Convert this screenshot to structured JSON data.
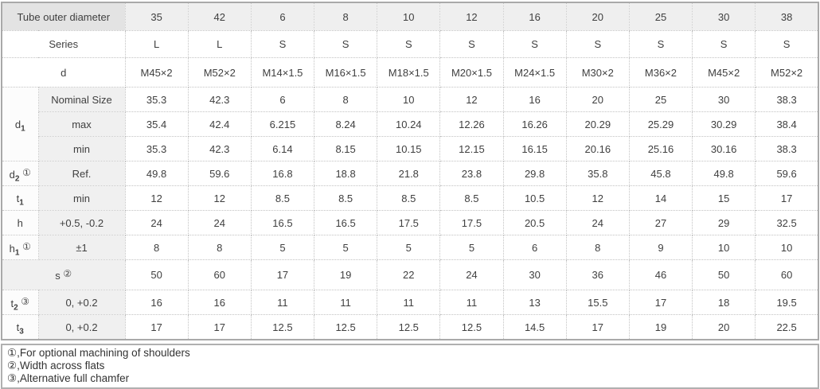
{
  "colors": {
    "accent_blue": "#1a6eb8",
    "header_label_bg": "#e3e3e3",
    "header_value_bg": "#efefef",
    "sublabel_bg": "#f0f0f0"
  },
  "table": {
    "header": {
      "label": "Tube outer diameter",
      "values": [
        "35",
        "42",
        "6",
        "8",
        "10",
        "12",
        "16",
        "20",
        "25",
        "30",
        "38"
      ]
    },
    "rows": [
      {
        "id": "series",
        "span": 2,
        "label": {
          "text": "Series"
        },
        "values": [
          "L",
          "L",
          "S",
          "S",
          "S",
          "S",
          "S",
          "S",
          "S",
          "S",
          "S"
        ]
      },
      {
        "id": "d",
        "span": 2,
        "label": {
          "text": "d"
        },
        "values": [
          "M45×2",
          "M52×2",
          "M14×1.5",
          "M16×1.5",
          "M18×1.5",
          "M20×1.5",
          "M24×1.5",
          "M30×2",
          "M36×2",
          "M45×2",
          "M52×2"
        ]
      },
      {
        "id": "d1-nominal",
        "group": {
          "text": "d",
          "sub": "1",
          "rows": 3
        },
        "sublabel": "Nominal Size",
        "values": [
          "35.3",
          "42.3",
          "6",
          "8",
          "10",
          "12",
          "16",
          "20",
          "25",
          "30",
          "38.3"
        ]
      },
      {
        "id": "d1-max",
        "sublabel": "max",
        "values": [
          "35.4",
          "42.4",
          "6.215",
          "8.24",
          "10.24",
          "12.26",
          "16.26",
          "20.29",
          "25.29",
          "30.29",
          "38.4"
        ]
      },
      {
        "id": "d1-min",
        "sublabel": "min",
        "values": [
          "35.3",
          "42.3",
          "6.14",
          "8.15",
          "10.15",
          "12.15",
          "16.15",
          "20.16",
          "25.16",
          "30.16",
          "38.3"
        ]
      },
      {
        "id": "d2",
        "label": {
          "text": "d",
          "sub": "2",
          "note": "①"
        },
        "sublabel": "Ref.",
        "values": [
          "49.8",
          "59.6",
          "16.8",
          "18.8",
          "21.8",
          "23.8",
          "29.8",
          "35.8",
          "45.8",
          "49.8",
          "59.6"
        ]
      },
      {
        "id": "t1",
        "label": {
          "text": "t",
          "sub": "1"
        },
        "sublabel": "min",
        "values": [
          "12",
          "12",
          "8.5",
          "8.5",
          "8.5",
          "8.5",
          "10.5",
          "12",
          "14",
          "15",
          "17"
        ]
      },
      {
        "id": "h",
        "label": {
          "text": "h"
        },
        "sublabel": "+0.5, -0.2",
        "values": [
          "24",
          "24",
          "16.5",
          "16.5",
          "17.5",
          "17.5",
          "20.5",
          "24",
          "27",
          "29",
          "32.5"
        ]
      },
      {
        "id": "h1",
        "label": {
          "text": "h",
          "sub": "1",
          "note": "①"
        },
        "sublabel": "±1",
        "values": [
          "8",
          "8",
          "5",
          "5",
          "5",
          "5",
          "6",
          "8",
          "9",
          "10",
          "10"
        ]
      },
      {
        "id": "s",
        "span": 2,
        "shaded": true,
        "label": {
          "text": "s",
          "note": "②"
        },
        "values": [
          "50",
          "60",
          "17",
          "19",
          "22",
          "24",
          "30",
          "36",
          "46",
          "50",
          "60"
        ]
      },
      {
        "id": "t2",
        "label": {
          "text": "t",
          "sub": "2",
          "note": "③"
        },
        "sublabel": "0, +0.2",
        "values": [
          "16",
          "16",
          "11",
          "11",
          "11",
          "11",
          "13",
          "15.5",
          "17",
          "18",
          "19.5"
        ]
      },
      {
        "id": "t3",
        "label": {
          "text": "t",
          "sub": "3"
        },
        "sublabel": "0, +0.2",
        "values": [
          "17",
          "17",
          "12.5",
          "12.5",
          "12.5",
          "12.5",
          "14.5",
          "17",
          "19",
          "20",
          "22.5"
        ]
      }
    ]
  },
  "notes": [
    "①,For optional machining of shoulders",
    "②,Width across flats",
    "③,Alternative full chamfer"
  ]
}
